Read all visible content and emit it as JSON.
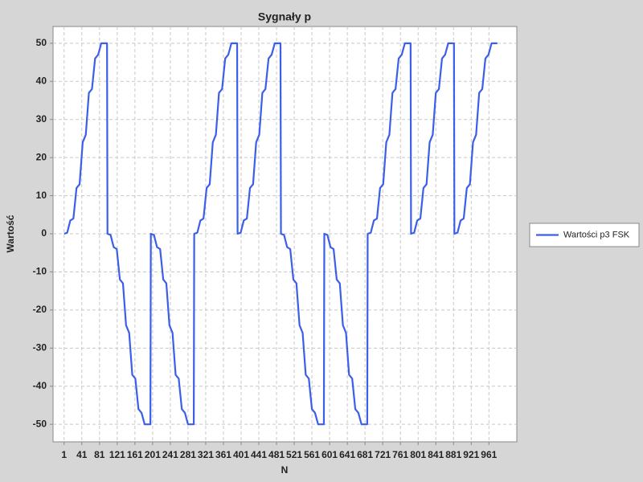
{
  "chart_data": {
    "type": "line",
    "title": "Sygnały p",
    "x_label": "N",
    "y_label": "Wartość",
    "x": [
      1,
      8,
      15,
      22,
      29,
      36,
      43,
      50,
      57,
      64,
      71,
      78,
      85,
      92,
      98,
      99,
      106,
      113,
      120,
      127,
      134,
      141,
      148,
      155,
      162,
      169,
      176,
      183,
      190,
      196,
      197,
      204,
      211,
      218,
      225,
      232,
      239,
      246,
      253,
      260,
      267,
      274,
      281,
      288,
      294,
      295,
      302,
      309,
      316,
      323,
      330,
      337,
      344,
      351,
      358,
      365,
      372,
      379,
      386,
      392,
      393,
      400,
      407,
      414,
      421,
      428,
      435,
      442,
      449,
      456,
      463,
      470,
      477,
      484,
      490,
      491,
      498,
      505,
      512,
      519,
      526,
      533,
      540,
      547,
      554,
      561,
      568,
      575,
      582,
      588,
      589,
      596,
      603,
      610,
      617,
      624,
      631,
      638,
      645,
      652,
      659,
      666,
      673,
      680,
      686,
      687,
      694,
      701,
      708,
      715,
      722,
      729,
      736,
      743,
      750,
      757,
      764,
      771,
      778,
      784,
      785,
      792,
      799,
      806,
      813,
      820,
      827,
      834,
      841,
      848,
      855,
      862,
      869,
      876,
      882,
      883,
      890,
      897,
      904,
      911,
      918,
      925,
      932,
      939,
      946,
      953,
      960,
      967,
      974,
      980
    ],
    "series": [
      {
        "name": "Wartości p3 FSK",
        "color": "#3c5ee8",
        "values": [
          0,
          0.3,
          3.5,
          4,
          12,
          13,
          24,
          26,
          37,
          38,
          46,
          47,
          50,
          50,
          50,
          0,
          -0.3,
          -3.5,
          -4,
          -12,
          -13,
          -24,
          -26,
          -37,
          -38,
          -46,
          -47,
          -50,
          -50,
          -50,
          0,
          -0.3,
          -3.5,
          -4,
          -12,
          -13,
          -24,
          -26,
          -37,
          -38,
          -46,
          -47,
          -50,
          -50,
          -50,
          0,
          0.3,
          3.5,
          4,
          12,
          13,
          24,
          26,
          37,
          38,
          46,
          47,
          50,
          50,
          50,
          0,
          0.3,
          3.5,
          4,
          12,
          13,
          24,
          26,
          37,
          38,
          46,
          47,
          50,
          50,
          50,
          0,
          -0.3,
          -3.5,
          -4,
          -12,
          -13,
          -24,
          -26,
          -37,
          -38,
          -46,
          -47,
          -50,
          -50,
          -50,
          0,
          -0.3,
          -3.5,
          -4,
          -12,
          -13,
          -24,
          -26,
          -37,
          -38,
          -46,
          -47,
          -50,
          -50,
          -50,
          0,
          0.3,
          3.5,
          4,
          12,
          13,
          24,
          26,
          37,
          38,
          46,
          47,
          50,
          50,
          50,
          0,
          0.3,
          3.5,
          4,
          12,
          13,
          24,
          26,
          37,
          38,
          46,
          47,
          50,
          50,
          50,
          0,
          0.3,
          3.5,
          4,
          12,
          13,
          24,
          26,
          37,
          38,
          46,
          47,
          50,
          50,
          50
        ]
      }
    ],
    "xlim": [
      -24,
      1024
    ],
    "xticks": [
      1,
      41,
      81,
      121,
      161,
      201,
      241,
      281,
      321,
      361,
      401,
      441,
      481,
      521,
      561,
      601,
      641,
      681,
      721,
      761,
      801,
      841,
      881,
      921,
      961
    ],
    "ylim": [
      -54.6,
      54.4
    ],
    "yticks": [
      -50,
      -40,
      -30,
      -20,
      -10,
      0,
      10,
      20,
      30,
      40,
      50
    ],
    "grid": true,
    "legend": "right"
  }
}
